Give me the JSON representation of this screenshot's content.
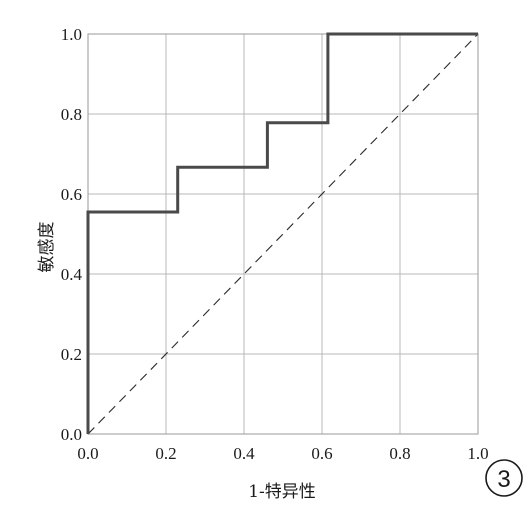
{
  "chart_data": {
    "type": "line",
    "xlabel": "1-特异性",
    "ylabel": "敏感度",
    "xlim": [
      0,
      1
    ],
    "ylim": [
      0,
      1
    ],
    "x_ticks": [
      "0.0",
      "0.2",
      "0.4",
      "0.6",
      "0.8",
      "1.0"
    ],
    "y_ticks": [
      "0.0",
      "0.2",
      "0.4",
      "0.6",
      "0.8",
      "1.0"
    ],
    "grid": true,
    "series": [
      {
        "style": "step",
        "x": [
          0.0,
          0.0,
          0.23,
          0.23,
          0.46,
          0.46,
          0.615,
          0.615,
          1.0
        ],
        "y": [
          0.0,
          0.555,
          0.555,
          0.667,
          0.667,
          0.778,
          0.778,
          1.0,
          1.0
        ],
        "color": "#4a4a4a"
      },
      {
        "style": "dashed-reference",
        "x": [
          0.0,
          1.0
        ],
        "y": [
          0.0,
          1.0
        ],
        "color": "#2a2a2a"
      }
    ],
    "panel_label": "3"
  }
}
